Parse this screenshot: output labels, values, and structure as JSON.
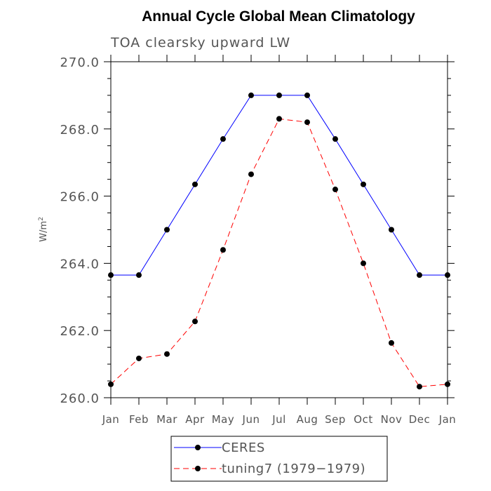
{
  "chart_data": {
    "type": "line",
    "title": "Annual Cycle Global Mean Climatology",
    "subtitle": "TOA clearsky upward LW",
    "ylabel_base": "W/m",
    "ylabel_exp": "2",
    "xlabel": "",
    "categories": [
      "Jan",
      "Feb",
      "Mar",
      "Apr",
      "May",
      "Jun",
      "Jul",
      "Aug",
      "Sep",
      "Oct",
      "Nov",
      "Dec",
      "Jan"
    ],
    "ylim": [
      260.0,
      270.0
    ],
    "yticks": [
      "260.0",
      "262.0",
      "264.0",
      "266.0",
      "268.0",
      "270.0"
    ],
    "ytick_values": [
      260,
      262,
      264,
      266,
      268,
      270
    ],
    "grid": false,
    "legend_position": "bottom-center",
    "series": [
      {
        "name": "CERES",
        "color": "#0000ff",
        "dash": "solid",
        "marker": "filled-circle",
        "values": [
          263.65,
          263.65,
          265.0,
          266.35,
          267.7,
          269.0,
          269.0,
          269.0,
          267.7,
          266.35,
          265.0,
          263.65,
          263.65
        ]
      },
      {
        "name": "tuning7 (1979−1979)",
        "color": "#ff0000",
        "dash": "dashed",
        "marker": "filled-circle",
        "values": [
          260.4,
          261.17,
          261.3,
          262.27,
          264.4,
          266.65,
          268.3,
          268.2,
          266.2,
          264.0,
          261.63,
          260.33,
          260.4
        ]
      }
    ]
  }
}
